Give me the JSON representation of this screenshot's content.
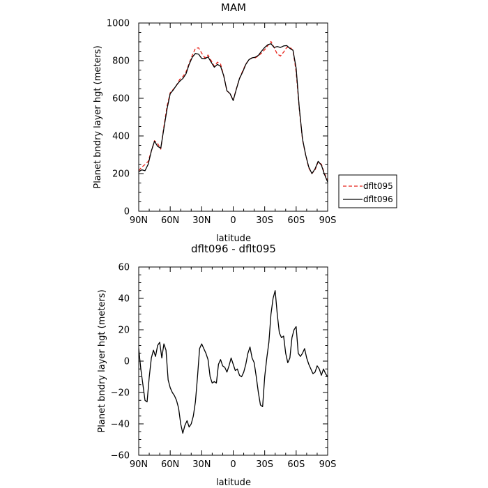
{
  "chart_data": [
    {
      "type": "line",
      "title": "MAM",
      "xlabel": "latitude",
      "ylabel": "Planet bndry layer hgt (meters)",
      "xlim": [
        90,
        -90
      ],
      "ylim": [
        0,
        1000
      ],
      "x_ticks": [
        90,
        60,
        30,
        0,
        -30,
        -60,
        -90
      ],
      "x_tick_labels": [
        "90N",
        "60N",
        "30N",
        "0",
        "30S",
        "60S",
        "90S"
      ],
      "y_ticks": [
        0,
        200,
        400,
        600,
        800,
        1000
      ],
      "y_tick_labels": [
        "0",
        "200",
        "400",
        "600",
        "800",
        "1000"
      ],
      "legend_position": "right",
      "series": [
        {
          "name": "dflt095",
          "color": "#e8231a",
          "dash": "dashed",
          "x": [
            90,
            87,
            84,
            81,
            78,
            75,
            72,
            69,
            66,
            63,
            60,
            57,
            54,
            51,
            48,
            45,
            42,
            39,
            36,
            33,
            30,
            27,
            24,
            21,
            18,
            15,
            12,
            9,
            6,
            3,
            0,
            -3,
            -6,
            -9,
            -12,
            -15,
            -18,
            -21,
            -24,
            -27,
            -30,
            -33,
            -36,
            -39,
            -42,
            -45,
            -48,
            -51,
            -54,
            -57,
            -60,
            -63,
            -66,
            -69,
            -72,
            -75,
            -78,
            -81,
            -84,
            -87,
            -90
          ],
          "y": [
            215,
            235,
            248,
            265,
            320,
            375,
            360,
            330,
            450,
            560,
            630,
            648,
            668,
            700,
            715,
            740,
            785,
            828,
            865,
            868,
            840,
            815,
            830,
            800,
            770,
            792,
            782,
            720,
            640,
            625,
            590,
            650,
            705,
            745,
            782,
            805,
            815,
            815,
            825,
            840,
            858,
            880,
            902,
            870,
            835,
            825,
            845,
            870,
            872,
            855,
            740,
            540,
            380,
            300,
            230,
            200,
            220,
            262,
            250,
            200,
            165
          ]
        },
        {
          "name": "dflt096",
          "color": "#000000",
          "dash": "solid",
          "x": [
            90,
            87,
            84,
            81,
            78,
            75,
            72,
            69,
            66,
            63,
            60,
            57,
            54,
            51,
            48,
            45,
            42,
            39,
            36,
            33,
            30,
            27,
            24,
            21,
            18,
            15,
            12,
            9,
            6,
            3,
            0,
            -3,
            -6,
            -9,
            -12,
            -15,
            -18,
            -21,
            -24,
            -27,
            -30,
            -33,
            -36,
            -39,
            -42,
            -45,
            -48,
            -51,
            -54,
            -57,
            -60,
            -63,
            -66,
            -69,
            -72,
            -75,
            -78,
            -81,
            -84,
            -87,
            -90
          ],
          "y": [
            210,
            220,
            215,
            250,
            320,
            372,
            345,
            335,
            440,
            545,
            625,
            645,
            670,
            690,
            705,
            730,
            780,
            818,
            838,
            835,
            812,
            810,
            820,
            792,
            765,
            780,
            770,
            720,
            640,
            625,
            588,
            648,
            705,
            740,
            780,
            805,
            815,
            818,
            828,
            850,
            870,
            885,
            890,
            870,
            875,
            870,
            878,
            880,
            865,
            855,
            760,
            545,
            385,
            300,
            235,
            200,
            225,
            265,
            245,
            195,
            155
          ]
        }
      ]
    },
    {
      "type": "line",
      "title": "dflt096 - dflt095",
      "xlabel": "latitude",
      "ylabel": "Planet bndry layer hgt (meters)",
      "xlim": [
        90,
        -90
      ],
      "ylim": [
        -60,
        60
      ],
      "x_ticks": [
        90,
        60,
        30,
        0,
        -30,
        -60,
        -90
      ],
      "x_tick_labels": [
        "90N",
        "60N",
        "30N",
        "0",
        "30S",
        "60S",
        "90S"
      ],
      "y_ticks": [
        -60,
        -40,
        -20,
        0,
        20,
        40,
        60
      ],
      "y_tick_labels": [
        "−60",
        "−40",
        "−20",
        "0",
        "20",
        "40",
        "60"
      ],
      "series": [
        {
          "name": "",
          "color": "#000000",
          "dash": "solid",
          "x": [
            90,
            88,
            86,
            84,
            82,
            80,
            78,
            76,
            74,
            72,
            70,
            68,
            66,
            64,
            62,
            60,
            58,
            56,
            54,
            52,
            50,
            48,
            46,
            44,
            42,
            40,
            38,
            36,
            34,
            32,
            30,
            28,
            26,
            24,
            22,
            20,
            18,
            16,
            14,
            12,
            10,
            8,
            6,
            4,
            2,
            0,
            -2,
            -4,
            -6,
            -8,
            -10,
            -12,
            -14,
            -16,
            -18,
            -20,
            -22,
            -24,
            -26,
            -28,
            -30,
            -32,
            -34,
            -36,
            -38,
            -40,
            -42,
            -44,
            -46,
            -48,
            -50,
            -52,
            -54,
            -56,
            -58,
            -60,
            -62,
            -64,
            -66,
            -68,
            -70,
            -72,
            -74,
            -76,
            -78,
            -80,
            -82,
            -84,
            -86,
            -88,
            -90
          ],
          "y": [
            8,
            -5,
            -15,
            -25,
            -26,
            -10,
            2,
            7,
            3,
            10,
            12,
            2,
            11,
            7,
            -12,
            -17,
            -20,
            -22,
            -25,
            -30,
            -40,
            -46,
            -41,
            -38,
            -42,
            -40,
            -35,
            -26,
            -10,
            8,
            11,
            8,
            5,
            1,
            -10,
            -14,
            -13,
            -14,
            -2,
            1,
            -3,
            -4,
            -7,
            -3,
            2,
            -2,
            -6,
            -5,
            -9,
            -10,
            -7,
            -2,
            5,
            9,
            2,
            -1,
            -10,
            -20,
            -28,
            -29,
            -10,
            2,
            12,
            30,
            40,
            45,
            30,
            18,
            15,
            16,
            5,
            -1,
            2,
            15,
            20,
            22,
            5,
            3,
            5,
            8,
            2,
            -2,
            -5,
            -8,
            -7,
            -3,
            -5,
            -9,
            -5,
            -8,
            -10
          ]
        }
      ]
    }
  ],
  "colors": {
    "axis": "#000000",
    "background": "#ffffff",
    "legend_border": "#000000"
  }
}
